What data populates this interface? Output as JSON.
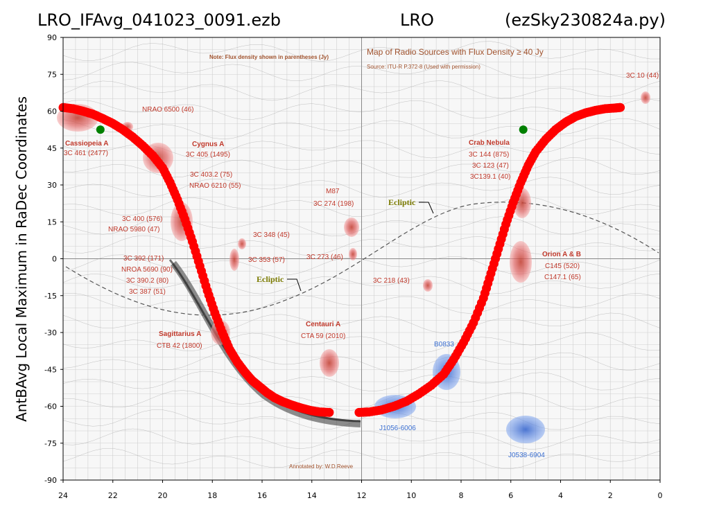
{
  "header": {
    "left": "LRO_IFAvg_041023_0091.ezb",
    "center": "LRO",
    "right": "(ezSky230824a.py)"
  },
  "chart_data": {
    "type": "scatter",
    "ylabel": "AntBAvg Local Maximum in RaDec Coordinates",
    "xlabel": "",
    "xlim": [
      24,
      0
    ],
    "ylim": [
      -90,
      90
    ],
    "x_ticks": [
      "24",
      "22",
      "20",
      "18",
      "16",
      "14",
      "12",
      "10",
      "8",
      "6",
      "4",
      "2",
      "0"
    ],
    "y_ticks": [
      "90",
      "75",
      "60",
      "45",
      "30",
      "15",
      "0",
      "-15",
      "-30",
      "-45",
      "-60",
      "-75",
      "-90"
    ],
    "grid": false,
    "series": [
      {
        "color": "#ff0000",
        "points": [
          [
            24.0,
            61.5
          ],
          [
            23.6,
            61.0
          ],
          [
            23.2,
            60.0
          ],
          [
            22.8,
            58.8
          ],
          [
            22.4,
            57.0
          ],
          [
            22.0,
            55.0
          ],
          [
            21.6,
            52.5
          ],
          [
            21.2,
            49.5
          ],
          [
            20.8,
            46.0
          ],
          [
            20.4,
            42.0
          ],
          [
            20.0,
            37.0
          ],
          [
            19.7,
            31.0
          ],
          [
            19.4,
            24.0
          ],
          [
            19.1,
            16.0
          ],
          [
            18.8,
            7.0
          ],
          [
            18.5,
            -3.0
          ],
          [
            18.2,
            -13.0
          ],
          [
            17.9,
            -22.0
          ],
          [
            17.6,
            -30.0
          ],
          [
            17.3,
            -37.0
          ],
          [
            17.0,
            -42.0
          ],
          [
            16.7,
            -46.0
          ],
          [
            16.4,
            -49.5
          ],
          [
            16.1,
            -52.0
          ],
          [
            15.8,
            -54.5
          ],
          [
            15.5,
            -56.5
          ],
          [
            15.2,
            -58.0
          ],
          [
            14.8,
            -59.5
          ],
          [
            14.4,
            -60.8
          ],
          [
            14.0,
            -61.8
          ],
          [
            13.7,
            -62.3
          ],
          [
            13.3,
            -62.5
          ],
          [
            12.1,
            -62.5
          ],
          [
            11.7,
            -62.3
          ],
          [
            11.2,
            -61.5
          ],
          [
            10.7,
            -60.0
          ],
          [
            10.2,
            -58.0
          ],
          [
            9.7,
            -55.0
          ],
          [
            9.2,
            -51.5
          ],
          [
            8.7,
            -47.0
          ],
          [
            8.3,
            -41.0
          ],
          [
            7.9,
            -34.0
          ],
          [
            7.5,
            -26.0
          ],
          [
            7.1,
            -16.0
          ],
          [
            6.8,
            -6.0
          ],
          [
            6.5,
            4.0
          ],
          [
            6.2,
            14.0
          ],
          [
            5.9,
            23.0
          ],
          [
            5.6,
            31.0
          ],
          [
            5.3,
            38.0
          ],
          [
            5.0,
            43.5
          ],
          [
            4.6,
            48.5
          ],
          [
            4.2,
            52.5
          ],
          [
            3.8,
            55.5
          ],
          [
            3.4,
            57.8
          ],
          [
            3.0,
            59.3
          ],
          [
            2.6,
            60.3
          ],
          [
            2.2,
            61.0
          ],
          [
            1.8,
            61.3
          ],
          [
            1.6,
            61.5
          ]
        ]
      },
      {
        "color": "#008000",
        "points": [
          [
            22.5,
            52.5
          ],
          [
            5.5,
            52.5
          ]
        ]
      }
    ]
  },
  "background_map": {
    "note": "Note: Flux density shown in parentheses (Jy)",
    "map_title": "Map of Radio Sources with Flux Density ≥ 40 Jy",
    "source": "Source: ITU-R P.372-8 (Used with permission)",
    "annotated_by": "Annotated by: W.D.Reeve",
    "ecliptic_label": "Ecliptic",
    "labels_red": [
      {
        "id": "cas-a-name",
        "text": "Cassiopeia A",
        "bold": true
      },
      {
        "id": "cas-a-flux",
        "text": "3C 461 (2477)",
        "bold": false
      },
      {
        "id": "nrao6500",
        "text": "NRAO 6500 (46)",
        "bold": false
      },
      {
        "id": "cyg-a-name",
        "text": "Cygnus A",
        "bold": true
      },
      {
        "id": "cyg-a-1",
        "text": "3C 405 (1495)",
        "bold": false
      },
      {
        "id": "cyg-a-2",
        "text": "3C 403.2 (75)",
        "bold": false
      },
      {
        "id": "cyg-a-3",
        "text": "NRAO 6210 (55)",
        "bold": false
      },
      {
        "id": "c400",
        "text": "3C 400 (576)",
        "bold": false
      },
      {
        "id": "nrao5980",
        "text": "NRAO 5980 (47)",
        "bold": false
      },
      {
        "id": "c348",
        "text": "3C 348 (45)",
        "bold": false
      },
      {
        "id": "c392",
        "text": "3C 392 (171)",
        "bold": false
      },
      {
        "id": "nrao5690",
        "text": "NROA 5690 (90)",
        "bold": false
      },
      {
        "id": "c3902",
        "text": "3C 390.2 (80)",
        "bold": false
      },
      {
        "id": "c387",
        "text": "3C 387 (51)",
        "bold": false
      },
      {
        "id": "c353",
        "text": "3C 353 (57)",
        "bold": false
      },
      {
        "id": "c273",
        "text": "3C 273 (46)",
        "bold": false
      },
      {
        "id": "m87-name",
        "text": "M87",
        "bold": false
      },
      {
        "id": "m87-flux",
        "text": "3C 274 (198)",
        "bold": false
      },
      {
        "id": "c218",
        "text": "3C 218 (43)",
        "bold": false
      },
      {
        "id": "sgr-a-name",
        "text": "Sagittarius A",
        "bold": true
      },
      {
        "id": "sgr-a-flux",
        "text": "CTB 42 (1800)",
        "bold": false
      },
      {
        "id": "cen-a-name",
        "text": "Centauri A",
        "bold": true
      },
      {
        "id": "cen-a-flux",
        "text": "CTA 59 (2010)",
        "bold": false
      },
      {
        "id": "crab-name",
        "text": "Crab Nebula",
        "bold": true
      },
      {
        "id": "crab-1",
        "text": "3C 144 (875)",
        "bold": false
      },
      {
        "id": "crab-2",
        "text": "3C 123 (47)",
        "bold": false
      },
      {
        "id": "crab-3",
        "text": "3C139.1 (40)",
        "bold": false
      },
      {
        "id": "orion-name",
        "text": "Orion A & B",
        "bold": true
      },
      {
        "id": "orion-1",
        "text": "C145 (520)",
        "bold": false
      },
      {
        "id": "orion-2",
        "text": "C147.1 (65)",
        "bold": false
      },
      {
        "id": "c10",
        "text": "3C 10 (44)",
        "bold": false
      }
    ],
    "labels_blue": [
      {
        "id": "b0833",
        "text": "B0833"
      },
      {
        "id": "j1056",
        "text": "J1056-6006"
      },
      {
        "id": "j0538",
        "text": "J0538-6904"
      }
    ]
  }
}
